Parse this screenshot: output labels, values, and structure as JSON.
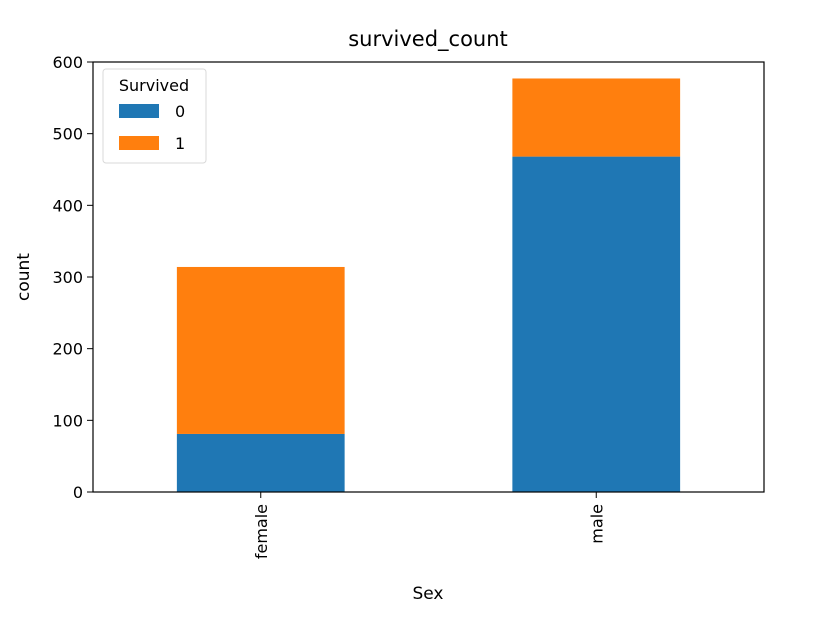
{
  "chart_data": {
    "type": "bar",
    "stacked": true,
    "title": "survived_count",
    "xlabel": "Sex",
    "ylabel": "count",
    "categories": [
      "female",
      "male"
    ],
    "series": [
      {
        "name": "0",
        "values": [
          81,
          468
        ],
        "color": "#1f77b4"
      },
      {
        "name": "1",
        "values": [
          233,
          109
        ],
        "color": "#ff7f0e"
      }
    ],
    "ylim": [
      0,
      600
    ],
    "yticks": [
      "0",
      "100",
      "200",
      "300",
      "400",
      "500",
      "600"
    ],
    "grid": false,
    "legend": {
      "title": "Survived",
      "entries": [
        "0",
        "1"
      ],
      "placement": "top-left"
    }
  }
}
